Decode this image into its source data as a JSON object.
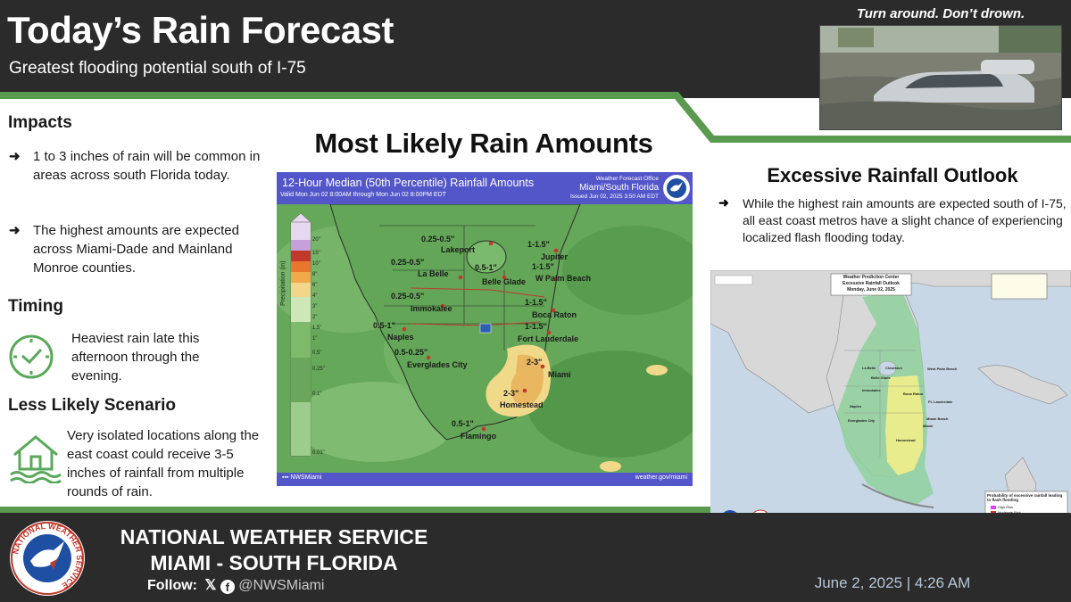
{
  "header": {
    "title": "Today’s Rain Forecast",
    "subtitle": "Greatest flooding potential south of I-75",
    "photo_caption": "Turn around. Don’t drown."
  },
  "impacts": {
    "heading": "Impacts",
    "bullets": [
      "1 to 3 inches of rain will be common in areas across south Florida today.",
      "The highest amounts are expected across Miami-Dade and Mainland Monroe counties."
    ]
  },
  "timing": {
    "heading": "Timing",
    "text": "Heaviest rain late this afternoon through the evening."
  },
  "scenario": {
    "heading": "Less Likely Scenario",
    "text": "Very isolated locations along the east coast could receive 3-5 inches of rainfall from multiple rounds of rain."
  },
  "center": {
    "title": "Most Likely Rain Amounts",
    "map": {
      "title": "12-Hour Median (50th Percentile) Rainfall Amounts",
      "valid": "Valid Mon Jun 02 8:00AM through Mon Jun 02 8:00PM EDT",
      "wfo_line1": "Weather Forecast Office",
      "wfo_line2": "Miami/South Florida",
      "wfo_line3": "Issued Jun 02, 2025 3:50 AM EDT",
      "legend_title": "Precipitation (in)",
      "legend_labels": [
        "20\"",
        "15\"",
        "10\"",
        "8\"",
        "6\"",
        "4\"",
        "3\"",
        "2\"",
        "1.5\"",
        "1\"",
        "0.5\"",
        "0.25\"",
        "0.1\"",
        "0.01\""
      ],
      "cities": [
        {
          "name": "Lakeport",
          "amount": "0.25-0.5\""
        },
        {
          "name": "La Belle",
          "amount": "0.25-0.5\""
        },
        {
          "name": "Belle Glade",
          "amount": "0.5-1\""
        },
        {
          "name": "Jupiter",
          "amount": "1-1.5\""
        },
        {
          "name": "W Palm Beach",
          "amount": "1-1.5\""
        },
        {
          "name": "Immokalee",
          "amount": "0.25-0.5\""
        },
        {
          "name": "Boca Raton",
          "amount": "1-1.5\""
        },
        {
          "name": "Naples",
          "amount": "0.5-1\""
        },
        {
          "name": "Fort Lauderdale",
          "amount": "1-1.5\""
        },
        {
          "name": "Everglades City",
          "amount": "0.5-0.25\""
        },
        {
          "name": "Miami",
          "amount": "2-3\""
        },
        {
          "name": "Homestead",
          "amount": "2-3\""
        },
        {
          "name": "Flamingo",
          "amount": "0.5-1\""
        }
      ],
      "footer_social": "NWSMiami",
      "footer_url": "weather.gov/miami"
    }
  },
  "outlook": {
    "title": "Excessive Rainfall Outlook",
    "text": "While the highest rain amounts are expected south of I-75, all east coast metros have a slight chance of experiencing localized flash flooding today.",
    "map_header1": "Weather Prediction Center",
    "map_header2": "Excessive Rainfall Outlook",
    "map_header3": "Monday, June 02, 2025",
    "legend_title": "Probability of excessive rainfall leading to flash flooding",
    "legend_items": [
      "High Risk",
      "Moderate Risk",
      "Slight Risk",
      "Marginal Risk"
    ],
    "labels": [
      "La Belle",
      "Clewiston",
      "Belle Glade",
      "West Palm Beach",
      "Immokalee",
      "Boca Raton",
      "Naples",
      "Ft. Lauderdale",
      "Everglades City",
      "Miami Beach",
      "Miami",
      "Homestead"
    ]
  },
  "footer": {
    "line1": "NATIONAL WEATHER SERVICE",
    "line2": "MIAMI - SOUTH FLORIDA",
    "follow_label": "Follow:",
    "handle": "@NWSMiami",
    "date": "June 2, 2025 | 4:26 AM",
    "logo_text": "NATIONAL WEATHER SERVICE"
  },
  "colors": {
    "dark_band": "#2b2b2b",
    "accent_green": "#5a9a4e",
    "map_header_purple": "#5356c9",
    "icon_green": "#5aa85a"
  }
}
